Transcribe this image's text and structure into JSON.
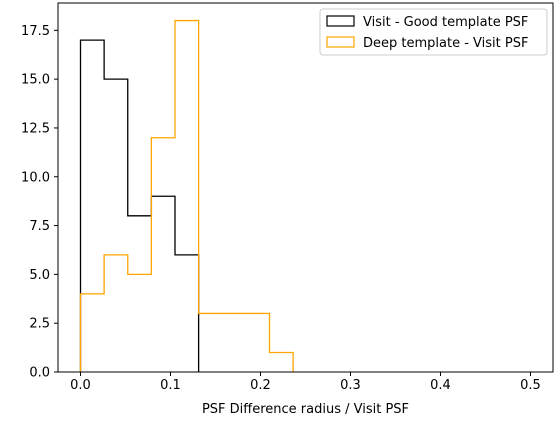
{
  "chart_data": {
    "type": "histogram-step",
    "title": "",
    "xlabel": "PSF Difference radius / Visit PSF",
    "ylabel": "",
    "xlim": [
      -0.025,
      0.525
    ],
    "ylim": [
      0,
      18.9
    ],
    "x_ticks": [
      0.0,
      0.1,
      0.2,
      0.3,
      0.4,
      0.5
    ],
    "x_tick_labels": [
      "0.0",
      "0.1",
      "0.2",
      "0.3",
      "0.4",
      "0.5"
    ],
    "y_ticks": [
      0.0,
      2.5,
      5.0,
      7.5,
      10.0,
      12.5,
      15.0,
      17.5
    ],
    "y_tick_labels": [
      "0.0",
      "2.5",
      "5.0",
      "7.5",
      "10.0",
      "12.5",
      "15.0",
      "17.5"
    ],
    "grid": false,
    "legend_position": "top-right",
    "series": [
      {
        "name": "Visit - Good template PSF",
        "color": "#000000",
        "bin_edges": [
          0.0,
          0.02625,
          0.0525,
          0.07875,
          0.105,
          0.13125
        ],
        "counts": [
          17,
          15,
          8,
          9,
          6
        ]
      },
      {
        "name": "Deep template - Visit PSF",
        "color": "#ffa500",
        "bin_edges": [
          0.0,
          0.02625,
          0.0525,
          0.07875,
          0.105,
          0.13125,
          0.1575,
          0.18375,
          0.21,
          0.23625
        ],
        "counts": [
          4,
          6,
          5,
          12,
          18,
          3,
          3,
          3,
          1
        ]
      }
    ]
  }
}
